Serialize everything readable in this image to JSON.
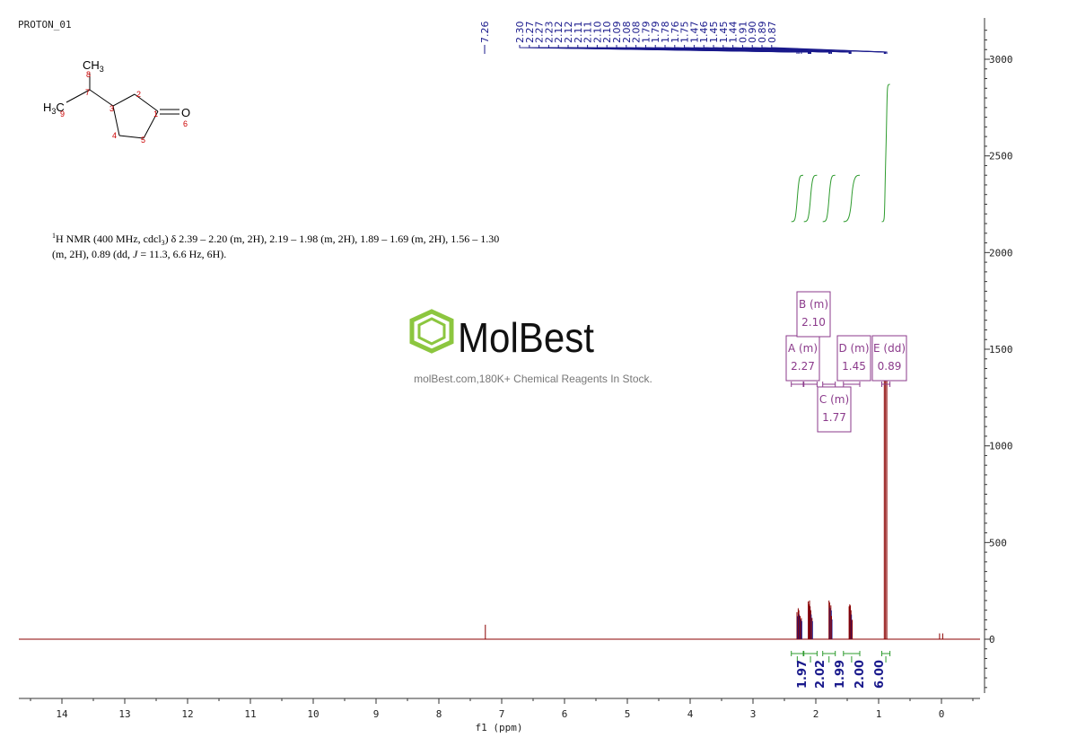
{
  "spectrum_title": "PROTON_01",
  "structure": {
    "atoms": [
      {
        "id": "C1",
        "label": "",
        "num": "1"
      },
      {
        "id": "C2",
        "label": "",
        "num": "2"
      },
      {
        "id": "C3",
        "label": "",
        "num": "3"
      },
      {
        "id": "C4",
        "label": "",
        "num": "4"
      },
      {
        "id": "C5",
        "label": "",
        "num": "5"
      },
      {
        "id": "O6",
        "label": "O",
        "num": "6"
      },
      {
        "id": "C7",
        "label": "",
        "num": "7"
      },
      {
        "id": "C8",
        "label": "CH",
        "sub": "3",
        "num": "8"
      },
      {
        "id": "C9",
        "label": "H",
        "sub": "3",
        "tail": "C",
        "num": "9"
      }
    ]
  },
  "nmr_text": {
    "line1_pre": "H NMR (400 MHz, cdcl",
    "line1_sub": "3",
    "line1_post": ") δ 2.39 – 2.20 (m, 2H), 2.19 – 1.98 (m, 2H), 1.89 – 1.69 (m, 2H), 1.56 – 1.30",
    "superscript": "1",
    "line2_pre": "(m, 2H), 0.89 (dd, ",
    "line2_j": "J",
    "line2_post": " = 11.3, 6.6 Hz, 6H)."
  },
  "watermark": {
    "brand": "MolBest",
    "tagline": "molBest.com,180K+ Chemical Reagents In Stock.",
    "brand_color": "#8cc63f"
  },
  "colors": {
    "peak_label": "#1a1a8c",
    "integral_curve": "#2e9b2e",
    "spectrum": "#8b0000",
    "multiplet": "#8b3a8b",
    "axis": "#333333"
  },
  "chart_data": {
    "type": "line",
    "xlabel": "f1  (ppm)",
    "xlim": [
      14.7,
      -0.6
    ],
    "ylim": [
      -300,
      3200
    ],
    "x_ticks": [
      14,
      13,
      12,
      11,
      10,
      9,
      8,
      7,
      6,
      5,
      4,
      3,
      2,
      1,
      0
    ],
    "y_ticks": [
      0,
      500,
      1000,
      1500,
      2000,
      2500,
      3000
    ],
    "peak_labels": [
      "7.26",
      "2.30",
      "2.27",
      "2.27",
      "2.23",
      "2.12",
      "2.12",
      "2.11",
      "2.11",
      "2.10",
      "2.10",
      "2.09",
      "2.08",
      "2.08",
      "1.79",
      "1.79",
      "1.78",
      "1.76",
      "1.75",
      "1.47",
      "1.46",
      "1.45",
      "1.45",
      "1.44",
      "0.91",
      "0.90",
      "0.89",
      "0.87"
    ],
    "peaks": [
      {
        "ppm": 7.26,
        "height": 75
      },
      {
        "ppm": 2.3,
        "height": 140
      },
      {
        "ppm": 2.28,
        "height": 160
      },
      {
        "ppm": 2.27,
        "height": 150
      },
      {
        "ppm": 2.25,
        "height": 120
      },
      {
        "ppm": 2.23,
        "height": 110
      },
      {
        "ppm": 2.12,
        "height": 195
      },
      {
        "ppm": 2.11,
        "height": 180
      },
      {
        "ppm": 2.1,
        "height": 200
      },
      {
        "ppm": 2.09,
        "height": 170
      },
      {
        "ppm": 2.08,
        "height": 150
      },
      {
        "ppm": 2.06,
        "height": 110
      },
      {
        "ppm": 1.79,
        "height": 200
      },
      {
        "ppm": 1.78,
        "height": 190
      },
      {
        "ppm": 1.76,
        "height": 175
      },
      {
        "ppm": 1.75,
        "height": 120
      },
      {
        "ppm": 1.47,
        "height": 170
      },
      {
        "ppm": 1.46,
        "height": 180
      },
      {
        "ppm": 1.45,
        "height": 175
      },
      {
        "ppm": 1.44,
        "height": 150
      },
      {
        "ppm": 1.42,
        "height": 100
      },
      {
        "ppm": 0.91,
        "height": 1380
      },
      {
        "ppm": 0.89,
        "height": 1400
      },
      {
        "ppm": 0.87,
        "height": 1390
      },
      {
        "ppm": 0.03,
        "height": 30
      },
      {
        "ppm": -0.02,
        "height": 30
      }
    ],
    "multiplets": [
      {
        "label": "A (m)",
        "shift": "2.27",
        "range": [
          2.39,
          2.2
        ]
      },
      {
        "label": "B (m)",
        "shift": "2.10",
        "range": [
          2.19,
          1.98
        ]
      },
      {
        "label": "C (m)",
        "shift": "1.77",
        "range": [
          1.89,
          1.69
        ]
      },
      {
        "label": "D (m)",
        "shift": "1.45",
        "range": [
          1.56,
          1.3
        ]
      },
      {
        "label": "E (dd)",
        "shift": "0.89",
        "range": [
          0.95,
          0.82
        ]
      }
    ],
    "integrals": [
      {
        "value": "1.97",
        "range": [
          2.39,
          2.2
        ],
        "start": 2160,
        "end": 2400
      },
      {
        "value": "2.02",
        "range": [
          2.19,
          1.98
        ],
        "start": 2160,
        "end": 2400
      },
      {
        "value": "1.99",
        "range": [
          1.89,
          1.69
        ],
        "start": 2160,
        "end": 2400
      },
      {
        "value": "2.00",
        "range": [
          1.56,
          1.3
        ],
        "start": 2160,
        "end": 2400
      },
      {
        "value": "6.00",
        "range": [
          0.95,
          0.82
        ],
        "start": 2160,
        "end": 2870
      }
    ]
  }
}
